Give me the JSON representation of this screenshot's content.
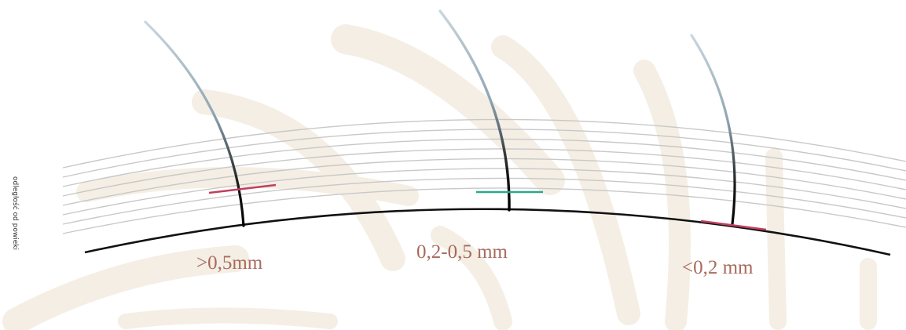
{
  "side_label": "odległość od powieki",
  "labels": [
    ">0,5mm",
    "0,2-0,5 mm",
    "<0,2 mm"
  ]
}
